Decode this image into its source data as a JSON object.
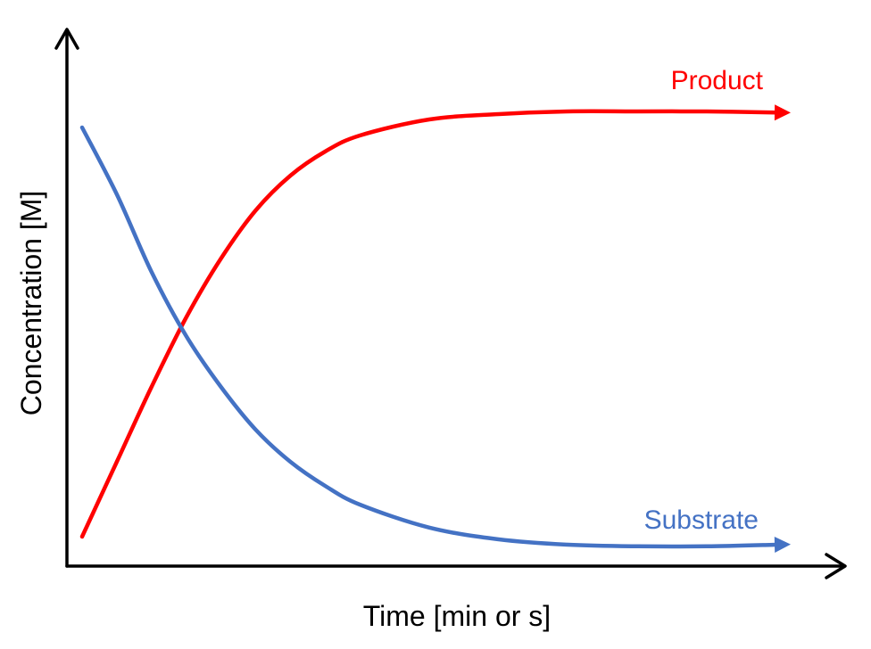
{
  "chart_data": {
    "type": "line",
    "title": "",
    "xlabel": "Time [min or s]",
    "ylabel": "Concentration [M]",
    "xlim": [
      0,
      10
    ],
    "ylim": [
      0,
      10
    ],
    "grid": false,
    "legend": "none (series labelled inline at curve ends)",
    "series": [
      {
        "name": "Product",
        "color": "#ff0000",
        "x": [
          0,
          0.5,
          1.0,
          1.5,
          2.0,
          2.5,
          3.0,
          3.5,
          4.0,
          5.0,
          6.0,
          7.0,
          8.0,
          9.0,
          10.0
        ],
        "y": [
          0.55,
          1.95,
          3.35,
          4.65,
          5.75,
          6.65,
          7.3,
          7.75,
          8.05,
          8.35,
          8.45,
          8.5,
          8.5,
          8.5,
          8.48
        ]
      },
      {
        "name": "Substrate",
        "color": "#4472c4",
        "x": [
          0,
          0.5,
          1.0,
          1.5,
          2.0,
          2.5,
          3.0,
          3.5,
          4.0,
          5.0,
          6.0,
          7.0,
          8.0,
          9.0,
          10.0
        ],
        "y": [
          8.2,
          6.95,
          5.5,
          4.3,
          3.35,
          2.55,
          1.95,
          1.5,
          1.15,
          0.72,
          0.5,
          0.4,
          0.37,
          0.37,
          0.4
        ]
      }
    ]
  }
}
